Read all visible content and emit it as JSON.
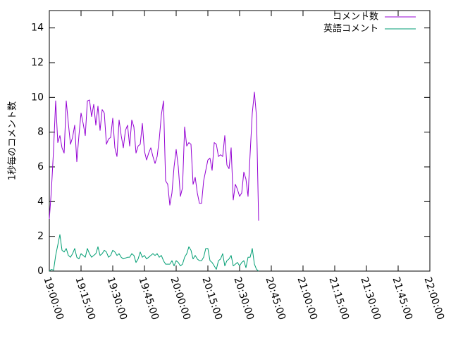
{
  "chart_data": {
    "type": "line",
    "title": "",
    "xlabel": "",
    "ylabel": "1秒毎のコメント数",
    "xlim": [
      "19:00:00",
      "22:00:00"
    ],
    "ylim": [
      0,
      15
    ],
    "x_ticks": [
      "19:00:00",
      "19:15:00",
      "19:30:00",
      "19:45:00",
      "20:00:00",
      "20:15:00",
      "20:30:00",
      "20:45:00",
      "21:00:00",
      "21:15:00",
      "21:30:00",
      "21:45:00",
      "22:00:00"
    ],
    "y_ticks": [
      "0",
      "2",
      "4",
      "6",
      "8",
      "10",
      "12",
      "14"
    ],
    "grid": false,
    "legend_position": "top-right",
    "series": [
      {
        "name": "コメント数",
        "color": "#9400d3",
        "points": [
          [
            "19:00:00",
            3.0
          ],
          [
            "19:01:00",
            4.7
          ],
          [
            "19:02:00",
            7.0
          ],
          [
            "19:03:00",
            9.8
          ],
          [
            "19:04:00",
            7.4
          ],
          [
            "19:05:00",
            7.8
          ],
          [
            "19:06:00",
            7.1
          ],
          [
            "19:07:00",
            6.8
          ],
          [
            "19:08:00",
            9.8
          ],
          [
            "19:09:00",
            8.5
          ],
          [
            "19:10:00",
            7.3
          ],
          [
            "19:11:00",
            7.7
          ],
          [
            "19:12:00",
            8.4
          ],
          [
            "19:13:00",
            6.3
          ],
          [
            "19:14:00",
            7.8
          ],
          [
            "19:15:00",
            9.1
          ],
          [
            "19:16:00",
            8.5
          ],
          [
            "19:17:00",
            7.8
          ],
          [
            "19:18:00",
            9.8
          ],
          [
            "19:19:00",
            9.85
          ],
          [
            "19:20:00",
            8.9
          ],
          [
            "19:21:00",
            9.6
          ],
          [
            "19:22:00",
            8.4
          ],
          [
            "19:23:00",
            9.5
          ],
          [
            "19:24:00",
            8.1
          ],
          [
            "19:25:00",
            9.3
          ],
          [
            "19:26:00",
            9.1
          ],
          [
            "19:27:00",
            7.3
          ],
          [
            "19:28:00",
            7.6
          ],
          [
            "19:29:00",
            7.7
          ],
          [
            "19:30:00",
            8.8
          ],
          [
            "19:31:00",
            7.1
          ],
          [
            "19:32:00",
            6.6
          ],
          [
            "19:33:00",
            8.7
          ],
          [
            "19:34:00",
            7.8
          ],
          [
            "19:35:00",
            7.1
          ],
          [
            "19:36:00",
            8.1
          ],
          [
            "19:37:00",
            8.4
          ],
          [
            "19:38:00",
            7.2
          ],
          [
            "19:39:00",
            8.7
          ],
          [
            "19:40:00",
            8.3
          ],
          [
            "19:41:00",
            6.8
          ],
          [
            "19:42:00",
            7.2
          ],
          [
            "19:43:00",
            7.3
          ],
          [
            "19:44:00",
            8.5
          ],
          [
            "19:45:00",
            6.9
          ],
          [
            "19:46:00",
            6.4
          ],
          [
            "19:47:00",
            6.8
          ],
          [
            "19:48:00",
            7.1
          ],
          [
            "19:49:00",
            6.6
          ],
          [
            "19:50:00",
            6.2
          ],
          [
            "19:51:00",
            6.6
          ],
          [
            "19:52:00",
            7.6
          ],
          [
            "19:53:00",
            9.0
          ],
          [
            "19:54:00",
            9.8
          ],
          [
            "19:55:00",
            5.2
          ],
          [
            "19:56:00",
            5.0
          ],
          [
            "19:57:00",
            3.8
          ],
          [
            "19:58:00",
            4.5
          ],
          [
            "19:59:00",
            6.0
          ],
          [
            "20:00:00",
            7.0
          ],
          [
            "20:01:00",
            6.0
          ],
          [
            "20:02:00",
            4.3
          ],
          [
            "20:03:00",
            4.8
          ],
          [
            "20:04:00",
            8.3
          ],
          [
            "20:05:00",
            7.2
          ],
          [
            "20:06:00",
            7.4
          ],
          [
            "20:07:00",
            7.3
          ],
          [
            "20:08:00",
            5.0
          ],
          [
            "20:09:00",
            5.4
          ],
          [
            "20:10:00",
            4.5
          ],
          [
            "20:11:00",
            3.9
          ],
          [
            "20:12:00",
            3.9
          ],
          [
            "20:13:00",
            5.2
          ],
          [
            "20:14:00",
            5.8
          ],
          [
            "20:15:00",
            6.4
          ],
          [
            "20:16:00",
            6.5
          ],
          [
            "20:17:00",
            5.8
          ],
          [
            "20:18:00",
            7.4
          ],
          [
            "20:19:00",
            7.3
          ],
          [
            "20:20:00",
            6.6
          ],
          [
            "20:21:00",
            6.7
          ],
          [
            "20:22:00",
            6.6
          ],
          [
            "20:23:00",
            7.8
          ],
          [
            "20:24:00",
            6.1
          ],
          [
            "20:25:00",
            5.9
          ],
          [
            "20:26:00",
            7.1
          ],
          [
            "20:27:00",
            4.1
          ],
          [
            "20:28:00",
            5.0
          ],
          [
            "20:29:00",
            4.7
          ],
          [
            "20:30:00",
            4.3
          ],
          [
            "20:31:00",
            4.5
          ],
          [
            "20:32:00",
            5.7
          ],
          [
            "20:33:00",
            5.3
          ],
          [
            "20:34:00",
            4.3
          ],
          [
            "20:35:00",
            6.8
          ],
          [
            "20:36:00",
            9.1
          ],
          [
            "20:37:00",
            10.3
          ],
          [
            "20:38:00",
            8.9
          ],
          [
            "20:39:00",
            2.9
          ]
        ]
      },
      {
        "name": "英語コメント",
        "color": "#009e73",
        "points": [
          [
            "19:00:00",
            0.0
          ],
          [
            "19:01:00",
            0.1
          ],
          [
            "19:02:00",
            0.05
          ],
          [
            "19:03:00",
            0.9
          ],
          [
            "19:04:00",
            1.5
          ],
          [
            "19:05:00",
            2.1
          ],
          [
            "19:06:00",
            1.2
          ],
          [
            "19:07:00",
            1.1
          ],
          [
            "19:08:00",
            1.3
          ],
          [
            "19:09:00",
            0.9
          ],
          [
            "19:10:00",
            0.8
          ],
          [
            "19:11:00",
            1.0
          ],
          [
            "19:12:00",
            1.3
          ],
          [
            "19:13:00",
            0.8
          ],
          [
            "19:14:00",
            0.7
          ],
          [
            "19:15:00",
            1.0
          ],
          [
            "19:16:00",
            0.9
          ],
          [
            "19:17:00",
            0.8
          ],
          [
            "19:18:00",
            1.3
          ],
          [
            "19:19:00",
            1.0
          ],
          [
            "19:20:00",
            0.8
          ],
          [
            "19:21:00",
            0.9
          ],
          [
            "19:22:00",
            1.0
          ],
          [
            "19:23:00",
            1.4
          ],
          [
            "19:24:00",
            0.9
          ],
          [
            "19:25:00",
            1.0
          ],
          [
            "19:26:00",
            1.2
          ],
          [
            "19:27:00",
            1.1
          ],
          [
            "19:28:00",
            0.8
          ],
          [
            "19:29:00",
            0.9
          ],
          [
            "19:30:00",
            1.2
          ],
          [
            "19:31:00",
            1.1
          ],
          [
            "19:32:00",
            0.9
          ],
          [
            "19:33:00",
            1.0
          ],
          [
            "19:34:00",
            0.8
          ],
          [
            "19:35:00",
            0.7
          ],
          [
            "19:36:00",
            0.75
          ],
          [
            "19:37:00",
            0.8
          ],
          [
            "19:38:00",
            0.8
          ],
          [
            "19:39:00",
            1.0
          ],
          [
            "19:40:00",
            0.9
          ],
          [
            "19:41:00",
            0.5
          ],
          [
            "19:42:00",
            0.7
          ],
          [
            "19:43:00",
            1.1
          ],
          [
            "19:44:00",
            0.8
          ],
          [
            "19:45:00",
            0.9
          ],
          [
            "19:46:00",
            0.7
          ],
          [
            "19:47:00",
            0.8
          ],
          [
            "19:48:00",
            0.9
          ],
          [
            "19:49:00",
            1.0
          ],
          [
            "19:50:00",
            0.9
          ],
          [
            "19:51:00",
            1.0
          ],
          [
            "19:52:00",
            0.8
          ],
          [
            "19:53:00",
            0.9
          ],
          [
            "19:54:00",
            0.6
          ],
          [
            "19:55:00",
            0.4
          ],
          [
            "19:56:00",
            0.4
          ],
          [
            "19:57:00",
            0.4
          ],
          [
            "19:58:00",
            0.6
          ],
          [
            "19:59:00",
            0.3
          ],
          [
            "20:00:00",
            0.6
          ],
          [
            "20:01:00",
            0.5
          ],
          [
            "20:02:00",
            0.3
          ],
          [
            "20:03:00",
            0.4
          ],
          [
            "20:04:00",
            0.8
          ],
          [
            "20:05:00",
            1.0
          ],
          [
            "20:06:00",
            1.4
          ],
          [
            "20:07:00",
            1.2
          ],
          [
            "20:08:00",
            0.7
          ],
          [
            "20:09:00",
            0.9
          ],
          [
            "20:10:00",
            0.7
          ],
          [
            "20:11:00",
            0.6
          ],
          [
            "20:12:00",
            0.6
          ],
          [
            "20:13:00",
            0.8
          ],
          [
            "20:14:00",
            1.3
          ],
          [
            "20:15:00",
            1.3
          ],
          [
            "20:16:00",
            0.6
          ],
          [
            "20:17:00",
            0.5
          ],
          [
            "20:18:00",
            0.3
          ],
          [
            "20:19:00",
            0.1
          ],
          [
            "20:20:00",
            0.6
          ],
          [
            "20:21:00",
            0.7
          ],
          [
            "20:22:00",
            1.0
          ],
          [
            "20:23:00",
            0.3
          ],
          [
            "20:24:00",
            0.6
          ],
          [
            "20:25:00",
            0.7
          ],
          [
            "20:26:00",
            0.9
          ],
          [
            "20:27:00",
            0.3
          ],
          [
            "20:28:00",
            0.4
          ],
          [
            "20:29:00",
            0.5
          ],
          [
            "20:30:00",
            0.3
          ],
          [
            "20:31:00",
            0.5
          ],
          [
            "20:32:00",
            0.6
          ],
          [
            "20:33:00",
            0.2
          ],
          [
            "20:34:00",
            0.8
          ],
          [
            "20:35:00",
            0.8
          ],
          [
            "20:36:00",
            1.3
          ],
          [
            "20:37:00",
            0.4
          ],
          [
            "20:38:00",
            0.1
          ],
          [
            "20:39:00",
            0.0
          ]
        ]
      }
    ]
  }
}
